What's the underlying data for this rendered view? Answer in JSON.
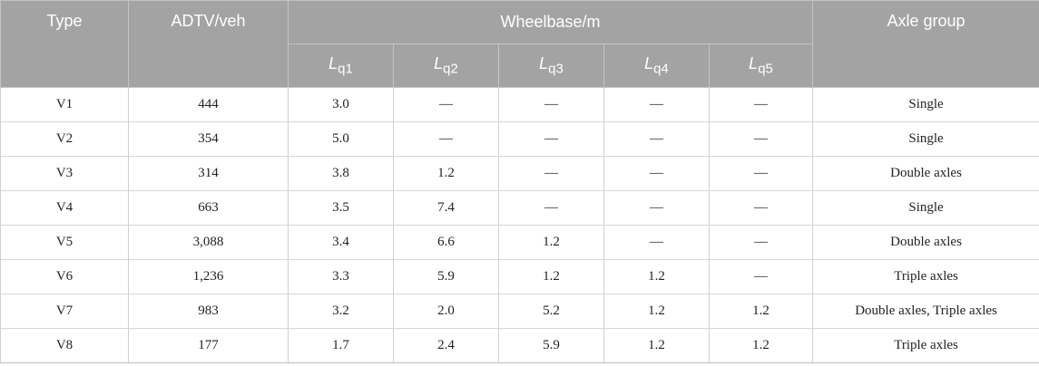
{
  "header": {
    "type": "Type",
    "adtv": "ADTV/veh",
    "wheelbase": "Wheelbase/m",
    "axle_group": "Axle group",
    "sub": [
      {
        "sym": "L",
        "sub": "q1"
      },
      {
        "sym": "L",
        "sub": "q2"
      },
      {
        "sym": "L",
        "sub": "q3"
      },
      {
        "sym": "L",
        "sub": "q4"
      },
      {
        "sym": "L",
        "sub": "q5"
      }
    ]
  },
  "rows": [
    {
      "type": "V1",
      "adtv": "444",
      "l": [
        "3.0",
        "—",
        "—",
        "—",
        "—"
      ],
      "axle": "Single"
    },
    {
      "type": "V2",
      "adtv": "354",
      "l": [
        "5.0",
        "—",
        "—",
        "—",
        "—"
      ],
      "axle": "Single"
    },
    {
      "type": "V3",
      "adtv": "314",
      "l": [
        "3.8",
        "1.2",
        "—",
        "—",
        "—"
      ],
      "axle": "Double axles"
    },
    {
      "type": "V4",
      "adtv": "663",
      "l": [
        "3.5",
        "7.4",
        "—",
        "—",
        "—"
      ],
      "axle": "Single"
    },
    {
      "type": "V5",
      "adtv": "3,088",
      "l": [
        "3.4",
        "6.6",
        "1.2",
        "—",
        "—"
      ],
      "axle": "Double axles"
    },
    {
      "type": "V6",
      "adtv": "1,236",
      "l": [
        "3.3",
        "5.9",
        "1.2",
        "1.2",
        "—"
      ],
      "axle": "Triple axles"
    },
    {
      "type": "V7",
      "adtv": "983",
      "l": [
        "3.2",
        "2.0",
        "5.2",
        "1.2",
        "1.2"
      ],
      "axle": "Double axles, Triple axles"
    },
    {
      "type": "V8",
      "adtv": "177",
      "l": [
        "1.7",
        "2.4",
        "5.9",
        "1.2",
        "1.2"
      ],
      "axle": "Triple axles"
    }
  ]
}
